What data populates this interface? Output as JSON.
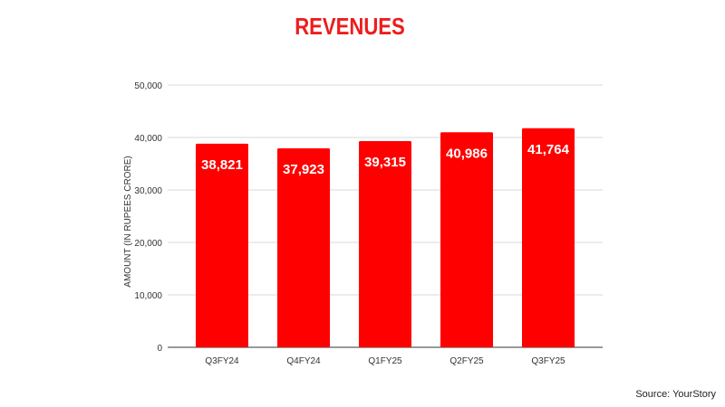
{
  "chart_data": {
    "type": "bar",
    "title": "REVENUES",
    "xlabel": "",
    "ylabel": "AMOUNT (IN RUPEES CRORE)",
    "categories": [
      "Q3FY24",
      "Q4FY24",
      "Q1FY25",
      "Q2FY25",
      "Q3FY25"
    ],
    "values": [
      38821,
      37923,
      39315,
      40986,
      41764
    ],
    "data_labels": [
      "38,821",
      "37,923",
      "39,315",
      "40,986",
      "41,764"
    ],
    "ylim": [
      0,
      50000
    ],
    "yticks": [
      "0",
      "10,000",
      "20,000",
      "30,000",
      "40,000",
      "50,000"
    ],
    "grid": true,
    "bar_color": "#ff0000",
    "title_color": "#ee1c1c"
  },
  "source": "Source: YourStory"
}
